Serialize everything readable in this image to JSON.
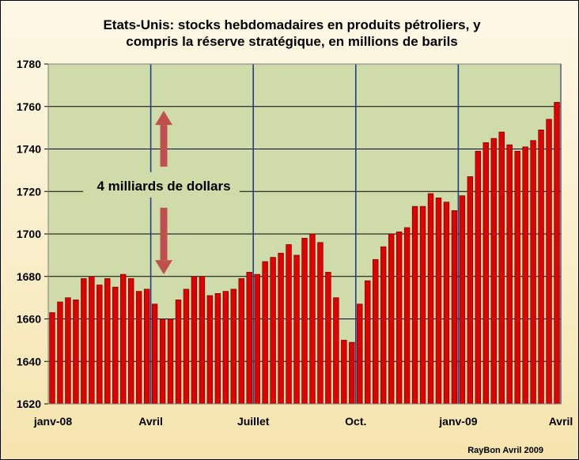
{
  "chart_data": {
    "type": "bar",
    "title_line1": "Etats-Unis: stocks hebdomadaires en produits pétroliers, y",
    "title_line2": "compris la réserve stratégique,  en millions de barils",
    "xlabel": "",
    "ylabel": "",
    "ylim": [
      1620,
      1780
    ],
    "yticks": [
      1620,
      1640,
      1660,
      1680,
      1700,
      1720,
      1740,
      1760,
      1780
    ],
    "grid": true,
    "x_tick_labels": [
      {
        "label": "janv-08",
        "index": 0
      },
      {
        "label": "Avril",
        "index": 13
      },
      {
        "label": "Juillet",
        "index": 26
      },
      {
        "label": "Oct.",
        "index": 39
      },
      {
        "label": "janv-09",
        "index": 52
      },
      {
        "label": "Avril",
        "index": 65
      }
    ],
    "values": [
      1663,
      1668,
      1670,
      1669,
      1679,
      1680,
      1676,
      1679,
      1675,
      1681,
      1679,
      1673,
      1674,
      1667,
      1660,
      1660,
      1669,
      1674,
      1680,
      1680,
      1671,
      1672,
      1673,
      1674,
      1679,
      1682,
      1681,
      1687,
      1689,
      1691,
      1695,
      1690,
      1698,
      1700,
      1696,
      1682,
      1670,
      1650,
      1649,
      1667,
      1678,
      1688,
      1694,
      1700,
      1701,
      1703,
      1713,
      1713,
      1719,
      1717,
      1715,
      1711,
      1718,
      1727,
      1739,
      1743,
      1745,
      1748,
      1742,
      1739,
      1741,
      1744,
      1749,
      1754,
      1762
    ],
    "bar_color": "#e00000",
    "plot_background": "#cfdcaa",
    "annotation": {
      "text": "4 milliards de dollars",
      "arrow_from": 1681,
      "arrow_to": 1758,
      "arrow_color": "#c0504d"
    },
    "credit": "RayBon Avril 2009"
  }
}
